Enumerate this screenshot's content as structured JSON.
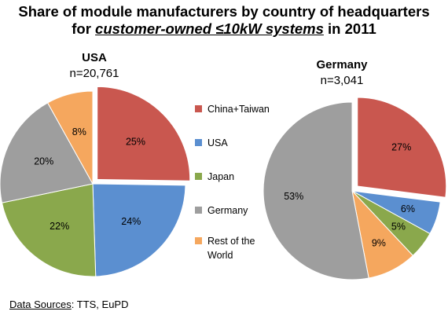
{
  "title": {
    "line1": "Share of module manufacturers by country of headquarters",
    "line2_pre": "for ",
    "line2_em": "customer-owned ≤10kW systems",
    "line2_post": " in 2011"
  },
  "legend": [
    {
      "label": "China+Taiwan",
      "color": "#c9574f"
    },
    {
      "label": "USA",
      "color": "#5b8fd0"
    },
    {
      "label": "Japan",
      "color": "#8aa84c"
    },
    {
      "label": "Germany",
      "color": "#9e9e9e"
    },
    {
      "label": "Rest of the World",
      "color": "#f5a75e"
    }
  ],
  "source": {
    "label": "Data Sources",
    "text": ": TTS, EuPD"
  },
  "chart_data": [
    {
      "type": "pie",
      "title": "USA",
      "subtitle": "n=20,761",
      "categories": [
        "China+Taiwan",
        "USA",
        "Japan",
        "Germany",
        "Rest of the World"
      ],
      "values": [
        25,
        24,
        22,
        20,
        8
      ],
      "labels": [
        "25%",
        "24%",
        "22%",
        "20%",
        "8%"
      ],
      "exploded": "China+Taiwan"
    },
    {
      "type": "pie",
      "title": "Germany",
      "subtitle": "n=3,041",
      "categories": [
        "China+Taiwan",
        "USA",
        "Japan",
        "Germany",
        "Rest of the World"
      ],
      "values": [
        27,
        6,
        5,
        53,
        9
      ],
      "labels": [
        "27%",
        "6%",
        "5%",
        "53%",
        "9%"
      ],
      "order": [
        "China+Taiwan",
        "USA",
        "Japan",
        "Rest of the World",
        "Germany"
      ],
      "exploded": "China+Taiwan"
    }
  ]
}
